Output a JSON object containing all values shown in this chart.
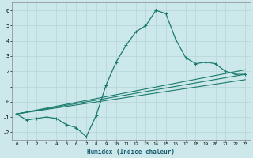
{
  "xlabel": "Humidex (Indice chaleur)",
  "bg_color": "#cce8ea",
  "grid_color": "#b8d8da",
  "line_color": "#1a7a6e",
  "xlim": [
    -0.5,
    23.5
  ],
  "ylim": [
    -2.5,
    6.5
  ],
  "xticks": [
    0,
    1,
    2,
    3,
    4,
    5,
    6,
    7,
    8,
    9,
    10,
    11,
    12,
    13,
    14,
    15,
    16,
    17,
    18,
    19,
    20,
    21,
    22,
    23
  ],
  "yticks": [
    -2,
    -1,
    0,
    1,
    2,
    3,
    4,
    5,
    6
  ],
  "line1_x": [
    0,
    1,
    2,
    3,
    4,
    5,
    6,
    7,
    8,
    9,
    10,
    11,
    12,
    13,
    14,
    15,
    16,
    17,
    18,
    19,
    20,
    21,
    22,
    23
  ],
  "line1_y": [
    -0.8,
    -1.2,
    -1.1,
    -1.0,
    -1.1,
    -1.5,
    -1.7,
    -2.3,
    -0.9,
    1.1,
    2.6,
    3.7,
    4.6,
    5.0,
    6.0,
    5.8,
    4.1,
    2.9,
    2.5,
    2.6,
    2.5,
    2.0,
    1.8,
    1.8
  ],
  "line2_x": [
    0,
    23
  ],
  "line2_y": [
    -0.8,
    1.8
  ],
  "line3_x": [
    0,
    23
  ],
  "line3_y": [
    -0.8,
    2.1
  ],
  "line4_x": [
    0,
    23
  ],
  "line4_y": [
    -0.8,
    1.45
  ]
}
